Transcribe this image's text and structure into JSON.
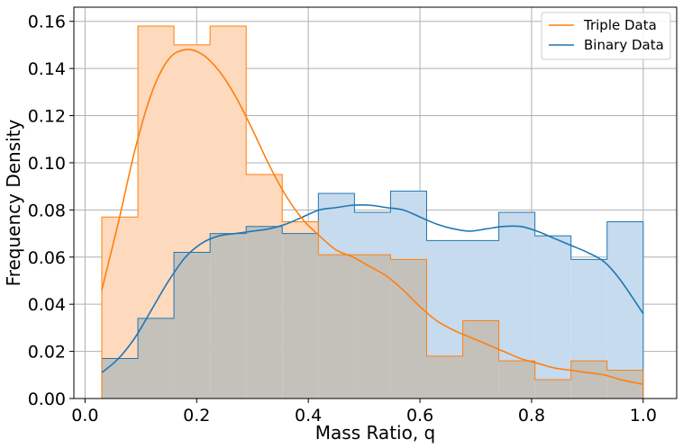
{
  "chart_data": {
    "type": "area",
    "xlabel": "Mass Ratio, q",
    "ylabel": "Frequency Density",
    "xlim": [
      -0.02,
      1.06
    ],
    "ylim": [
      0,
      0.166
    ],
    "grid": true,
    "legend_position": "top-right",
    "x_ticks": [
      0.0,
      0.2,
      0.4,
      0.6,
      0.8,
      1.0
    ],
    "x_tick_labels": [
      "0.0",
      "0.2",
      "0.4",
      "0.6",
      "0.8",
      "1.0"
    ],
    "y_ticks": [
      0.0,
      0.02,
      0.04,
      0.06,
      0.08,
      0.1,
      0.12,
      0.14,
      0.16
    ],
    "y_tick_labels": [
      "0.00",
      "0.02",
      "0.04",
      "0.06",
      "0.08",
      "0.10",
      "0.12",
      "0.14",
      "0.16"
    ],
    "bin_edges": [
      0.03,
      0.0947,
      0.1593,
      0.224,
      0.2887,
      0.3533,
      0.418,
      0.4827,
      0.5473,
      0.612,
      0.6767,
      0.7413,
      0.806,
      0.8707,
      0.9353,
      1.0
    ],
    "series": [
      {
        "name": "Triple Data",
        "color": "#ff7f0e",
        "fill": "#fdd9bd",
        "hist_values": [
          0.077,
          0.158,
          0.15,
          0.158,
          0.095,
          0.075,
          0.061,
          0.061,
          0.059,
          0.018,
          0.033,
          0.016,
          0.008,
          0.016,
          0.012
        ],
        "kde_x": [
          0.03,
          0.06,
          0.09,
          0.12,
          0.15,
          0.18,
          0.21,
          0.24,
          0.27,
          0.3,
          0.33,
          0.36,
          0.39,
          0.42,
          0.45,
          0.48,
          0.51,
          0.54,
          0.57,
          0.6,
          0.63,
          0.66,
          0.69,
          0.72,
          0.75,
          0.78,
          0.81,
          0.84,
          0.87,
          0.9,
          0.93,
          0.96,
          1.0
        ],
        "kde_y": [
          0.046,
          0.075,
          0.106,
          0.13,
          0.144,
          0.148,
          0.146,
          0.139,
          0.128,
          0.114,
          0.099,
          0.086,
          0.076,
          0.069,
          0.063,
          0.06,
          0.056,
          0.052,
          0.046,
          0.039,
          0.033,
          0.029,
          0.026,
          0.023,
          0.02,
          0.017,
          0.015,
          0.013,
          0.012,
          0.011,
          0.01,
          0.008,
          0.006
        ]
      },
      {
        "name": "Binary Data",
        "color": "#1f77b4",
        "fill": "#c6dbed",
        "hist_values": [
          0.017,
          0.034,
          0.062,
          0.07,
          0.073,
          0.07,
          0.087,
          0.079,
          0.088,
          0.067,
          0.067,
          0.079,
          0.069,
          0.059,
          0.075
        ],
        "kde_x": [
          0.03,
          0.06,
          0.09,
          0.12,
          0.15,
          0.18,
          0.21,
          0.24,
          0.27,
          0.3,
          0.33,
          0.36,
          0.39,
          0.42,
          0.45,
          0.48,
          0.51,
          0.54,
          0.57,
          0.6,
          0.63,
          0.66,
          0.69,
          0.72,
          0.75,
          0.78,
          0.81,
          0.84,
          0.87,
          0.9,
          0.93,
          0.96,
          1.0
        ],
        "kde_y": [
          0.011,
          0.017,
          0.026,
          0.038,
          0.05,
          0.06,
          0.066,
          0.069,
          0.07,
          0.071,
          0.072,
          0.074,
          0.077,
          0.08,
          0.081,
          0.082,
          0.082,
          0.081,
          0.08,
          0.077,
          0.074,
          0.072,
          0.071,
          0.072,
          0.073,
          0.073,
          0.071,
          0.068,
          0.065,
          0.062,
          0.058,
          0.05,
          0.036
        ]
      }
    ],
    "overlap_fill": "#c4c1bb"
  }
}
